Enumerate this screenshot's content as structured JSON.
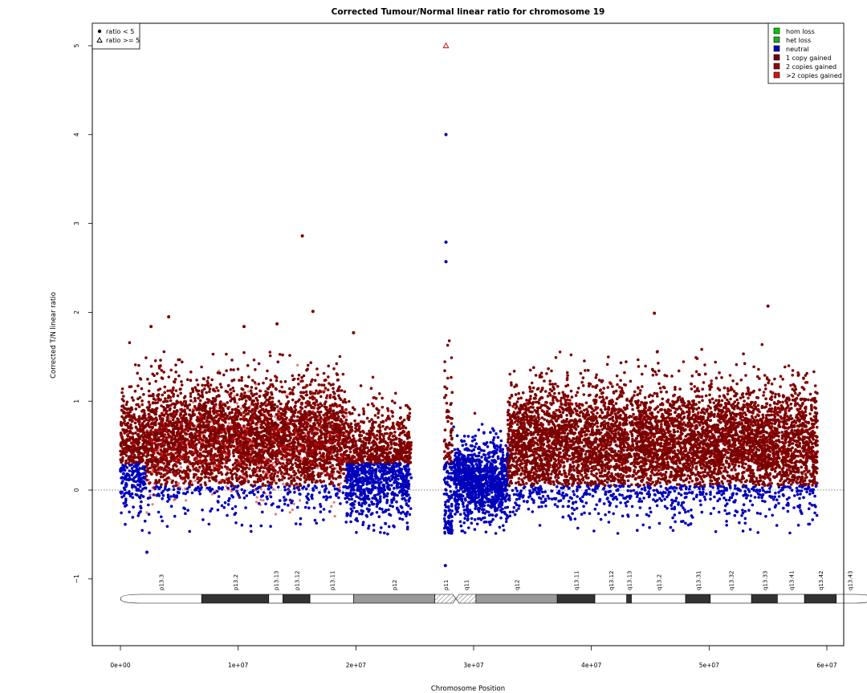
{
  "chart_data": {
    "type": "scatter",
    "title": "Corrected Tumour/Normal linear ratio for chromosome  19",
    "xlabel": "Chromosome Position",
    "ylabel": "Corrected T/N linear ratio",
    "xlim": [
      0,
      61500000
    ],
    "ylim": [
      -1.76,
      5.28
    ],
    "x_ticks": [
      0,
      10000000,
      20000000,
      30000000,
      40000000,
      50000000,
      60000000
    ],
    "x_tick_labels": [
      "0e+00",
      "1e+07",
      "2e+07",
      "3e+07",
      "4e+07",
      "5e+07",
      "6e+07"
    ],
    "y_ticks": [
      -1,
      0,
      1,
      2,
      3,
      4,
      5
    ],
    "y_tick_labels": [
      "−1",
      "0",
      "1",
      "2",
      "3",
      "4",
      "5"
    ],
    "reference_line": {
      "y": 0,
      "style": "dotted"
    },
    "grid": false,
    "shape_legend": {
      "position": "top-left",
      "entries": [
        {
          "label": "ratio < 5",
          "shape": "filled-circle"
        },
        {
          "label": "ratio >= 5",
          "shape": "open-triangle"
        }
      ]
    },
    "color_legend": {
      "position": "top-right",
      "entries": [
        {
          "label": "hom loss",
          "color": "#00cc00"
        },
        {
          "label": "het loss",
          "color": "#22aa22"
        },
        {
          "label": "neutral",
          "color": "#0000bb"
        },
        {
          "label": "1 copy gained",
          "color": "#7a0000"
        },
        {
          "label": "2 copies gained",
          "color": "#990000"
        },
        {
          "label": ">2 copies gained",
          "color": "#dd1111"
        }
      ]
    },
    "series_colors": {
      "neutral": "#0000bb",
      "gain1": "#7a0000",
      "gain2": "#990000",
      "gain3": "#cc1111"
    },
    "segments": [
      {
        "start": 0,
        "end": 2200000,
        "mean": 0.45,
        "sd": 0.32,
        "state": "mixed"
      },
      {
        "start": 2200000,
        "end": 19200000,
        "mean": 0.56,
        "sd": 0.33,
        "state": "gain1"
      },
      {
        "start": 19200000,
        "end": 24700000,
        "mean": 0.28,
        "sd": 0.3,
        "state": "mixed"
      },
      {
        "start": 27500000,
        "end": 28200000,
        "mean": 0.2,
        "sd": 0.55,
        "state": "mixed"
      },
      {
        "start": 28300000,
        "end": 32900000,
        "mean": 0.1,
        "sd": 0.22,
        "state": "neutral"
      },
      {
        "start": 32900000,
        "end": 59200000,
        "mean": 0.5,
        "sd": 0.34,
        "state": "gain1"
      }
    ],
    "outliers": [
      {
        "x": 27650000,
        "y": 5.0,
        "state": "gain3",
        "shape": "open-triangle"
      },
      {
        "x": 27650000,
        "y": 4.0,
        "state": "neutral"
      },
      {
        "x": 27650000,
        "y": 2.79,
        "state": "neutral"
      },
      {
        "x": 27650000,
        "y": 2.57,
        "state": "neutral"
      },
      {
        "x": 15450000,
        "y": 2.86,
        "state": "gain1"
      },
      {
        "x": 16350000,
        "y": 2.01,
        "state": "gain1"
      },
      {
        "x": 45350000,
        "y": 1.99,
        "state": "gain1"
      },
      {
        "x": 55000000,
        "y": 2.07,
        "state": "gain1"
      },
      {
        "x": 4100000,
        "y": 1.95,
        "state": "gain1"
      },
      {
        "x": 2600000,
        "y": 1.84,
        "state": "gain1"
      },
      {
        "x": 19800000,
        "y": 1.77,
        "state": "gain1"
      },
      {
        "x": 10500000,
        "y": 1.84,
        "state": "gain1"
      },
      {
        "x": 13300000,
        "y": 1.87,
        "state": "gain1"
      },
      {
        "x": 27600000,
        "y": -0.85,
        "state": "neutral"
      },
      {
        "x": 2250000,
        "y": -0.7,
        "state": "neutral"
      }
    ],
    "ideogram": {
      "bands": [
        {
          "name": "p13.3",
          "start": 0,
          "end": 6900000,
          "stain": "gneg"
        },
        {
          "name": "p13.2",
          "start": 6900000,
          "end": 12600000,
          "stain": "gpos75"
        },
        {
          "name": "p13.13",
          "start": 12600000,
          "end": 13800000,
          "stain": "gneg"
        },
        {
          "name": "p13.12",
          "start": 13800000,
          "end": 16100000,
          "stain": "gpos75"
        },
        {
          "name": "p13.11",
          "start": 16100000,
          "end": 19800000,
          "stain": "gneg"
        },
        {
          "name": "p12",
          "start": 19800000,
          "end": 26700000,
          "stain": "gvar"
        },
        {
          "name": "p11",
          "start": 26700000,
          "end": 28500000,
          "stain": "acen"
        },
        {
          "name": "q11",
          "start": 28500000,
          "end": 30200000,
          "stain": "acen"
        },
        {
          "name": "q12",
          "start": 30200000,
          "end": 37100000,
          "stain": "gvar"
        },
        {
          "name": "q13.11",
          "start": 37100000,
          "end": 40300000,
          "stain": "gpos75"
        },
        {
          "name": "q13.12",
          "start": 40300000,
          "end": 43000000,
          "stain": "gneg"
        },
        {
          "name": "q13.13",
          "start": 43000000,
          "end": 43400000,
          "stain": "gpos75"
        },
        {
          "name": "q13.2",
          "start": 43400000,
          "end": 48000000,
          "stain": "gneg"
        },
        {
          "name": "q13.31",
          "start": 48000000,
          "end": 50100000,
          "stain": "gpos75"
        },
        {
          "name": "q13.32",
          "start": 50100000,
          "end": 53600000,
          "stain": "gneg"
        },
        {
          "name": "q13.33",
          "start": 53600000,
          "end": 55800000,
          "stain": "gpos75"
        },
        {
          "name": "q13.41",
          "start": 55800000,
          "end": 58100000,
          "stain": "gneg"
        },
        {
          "name": "q13.42",
          "start": 58100000,
          "end": 60800000,
          "stain": "gpos75"
        },
        {
          "name": "q13.43",
          "start": 60800000,
          "end": 63800000,
          "stain": "gneg"
        }
      ]
    }
  }
}
